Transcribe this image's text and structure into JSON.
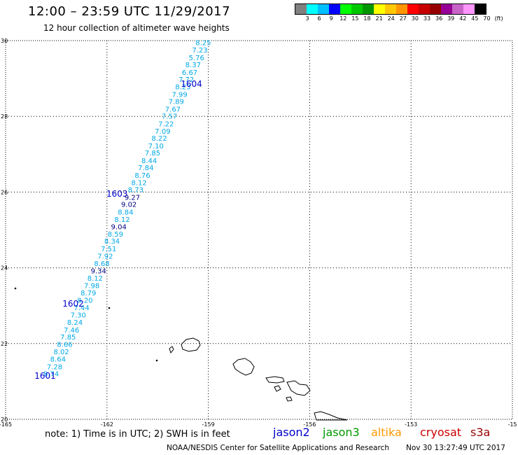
{
  "header": {
    "title": "12:00 – 23:59 UTC 11/29/2017",
    "subtitle": "12 hour collection of altimeter wave heights"
  },
  "legend": {
    "colors": [
      "#808080",
      "#00ffff",
      "#00bfff",
      "#0000ff",
      "#00ff00",
      "#00c800",
      "#009600",
      "#ffff00",
      "#ffc800",
      "#ff9600",
      "#ff0000",
      "#c80000",
      "#960000",
      "#960096",
      "#c864c8",
      "#ff96ff",
      "#000000"
    ],
    "ticks": [
      "3",
      "6",
      "9",
      "12",
      "15",
      "18",
      "21",
      "24",
      "27",
      "30",
      "33",
      "36",
      "39",
      "42",
      "45",
      "70",
      "(ft)"
    ]
  },
  "axes": {
    "x_labels": [
      "-165",
      "-162",
      "-159",
      "-156",
      "-153",
      "-15"
    ],
    "y_labels": [
      "30",
      "28",
      "26",
      "24",
      "22",
      "20"
    ],
    "lon_range": [
      -165,
      -150
    ],
    "lat_range": [
      20,
      30
    ]
  },
  "chart_data": {
    "type": "scatter",
    "unit": "ft",
    "track_labels": [
      {
        "text": "1601",
        "lon": -163.83,
        "lat": 21.15
      },
      {
        "text": "1602",
        "lon": -163.0,
        "lat": 23.05
      },
      {
        "text": "1603",
        "lon": -161.7,
        "lat": 25.95
      },
      {
        "text": "1604",
        "lon": -159.5,
        "lat": 28.85
      }
    ],
    "points": [
      {
        "lat": 29.95,
        "lon": -159.15,
        "v": "8.25"
      },
      {
        "lat": 29.76,
        "lon": -159.25,
        "v": "7.23"
      },
      {
        "lat": 29.56,
        "lon": -159.35,
        "v": "5.76"
      },
      {
        "lat": 29.37,
        "lon": -159.45,
        "v": "8.37"
      },
      {
        "lat": 29.17,
        "lon": -159.55,
        "v": "6.67"
      },
      {
        "lat": 28.98,
        "lon": -159.65,
        "v": "7.72"
      },
      {
        "lat": 28.79,
        "lon": -159.75,
        "v": "8.23"
      },
      {
        "lat": 28.59,
        "lon": -159.85,
        "v": "7.99"
      },
      {
        "lat": 28.4,
        "lon": -159.95,
        "v": "7.89"
      },
      {
        "lat": 28.2,
        "lon": -160.05,
        "v": "7.67"
      },
      {
        "lat": 28.01,
        "lon": -160.15,
        "v": "7.57"
      },
      {
        "lat": 27.81,
        "lon": -160.25,
        "v": "7.22"
      },
      {
        "lat": 27.62,
        "lon": -160.35,
        "v": "7.09"
      },
      {
        "lat": 27.43,
        "lon": -160.45,
        "v": "8.22"
      },
      {
        "lat": 27.23,
        "lon": -160.55,
        "v": "7.10"
      },
      {
        "lat": 27.04,
        "lon": -160.65,
        "v": "7.85"
      },
      {
        "lat": 26.84,
        "lon": -160.75,
        "v": "8.44"
      },
      {
        "lat": 26.65,
        "lon": -160.85,
        "v": "7.84"
      },
      {
        "lat": 26.45,
        "lon": -160.95,
        "v": "8.76"
      },
      {
        "lat": 26.26,
        "lon": -161.05,
        "v": "8.12"
      },
      {
        "lat": 26.07,
        "lon": -161.15,
        "v": "8.73"
      },
      {
        "lat": 25.87,
        "lon": -161.25,
        "v": "9.27"
      },
      {
        "lat": 25.68,
        "lon": -161.35,
        "v": "9.02"
      },
      {
        "lat": 25.48,
        "lon": -161.45,
        "v": "8.84"
      },
      {
        "lat": 25.29,
        "lon": -161.55,
        "v": "8.12"
      },
      {
        "lat": 25.09,
        "lon": -161.65,
        "v": "9.04"
      },
      {
        "lat": 24.9,
        "lon": -161.75,
        "v": "8.59"
      },
      {
        "lat": 24.71,
        "lon": -161.85,
        "v": "8.34"
      },
      {
        "lat": 24.51,
        "lon": -161.95,
        "v": "7.51"
      },
      {
        "lat": 24.32,
        "lon": -162.05,
        "v": "7.92"
      },
      {
        "lat": 24.12,
        "lon": -162.15,
        "v": "8.68"
      },
      {
        "lat": 23.93,
        "lon": -162.25,
        "v": "9.34"
      },
      {
        "lat": 23.73,
        "lon": -162.35,
        "v": "8.12"
      },
      {
        "lat": 23.54,
        "lon": -162.45,
        "v": "7.98"
      },
      {
        "lat": 23.35,
        "lon": -162.55,
        "v": "8.79"
      },
      {
        "lat": 23.15,
        "lon": -162.65,
        "v": "8.20"
      },
      {
        "lat": 22.96,
        "lon": -162.75,
        "v": "7.44"
      },
      {
        "lat": 22.76,
        "lon": -162.85,
        "v": "7.30"
      },
      {
        "lat": 22.57,
        "lon": -162.95,
        "v": "8.24"
      },
      {
        "lat": 22.37,
        "lon": -163.05,
        "v": "7.46"
      },
      {
        "lat": 22.18,
        "lon": -163.15,
        "v": "7.85"
      },
      {
        "lat": 21.99,
        "lon": -163.25,
        "v": "8.66"
      },
      {
        "lat": 21.79,
        "lon": -163.35,
        "v": "8.02"
      },
      {
        "lat": 21.6,
        "lon": -163.45,
        "v": "8.64"
      },
      {
        "lat": 21.4,
        "lon": -163.55,
        "v": "7.28"
      },
      {
        "lat": 21.21,
        "lon": -163.65,
        "v": "8.74"
      }
    ]
  },
  "footer": {
    "note": "note:  1) Time is in UTC;  2) SWH is in feet",
    "satellites": [
      {
        "name": "jason2",
        "color": "#0000cc"
      },
      {
        "name": "jason3",
        "color": "#009900"
      },
      {
        "name": "altika",
        "color": "#ff9900"
      },
      {
        "name": "cryosat",
        "color": "#cc0000"
      },
      {
        "name": "s3a",
        "color": "#990000"
      }
    ],
    "credit": "NOAA/NESDIS Center for Satellite Applications and Research",
    "timestamp": "Nov 30 13:27:49 UTC 2017"
  }
}
